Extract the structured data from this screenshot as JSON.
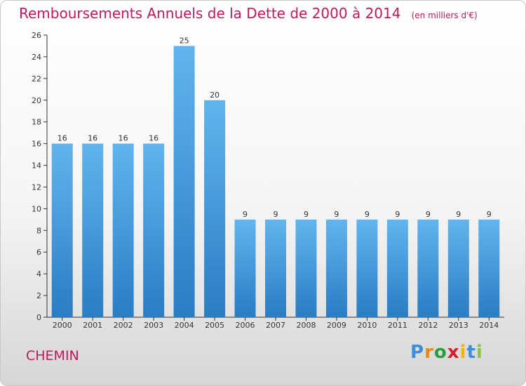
{
  "header": {
    "title": "Remboursements Annuels de la Dette de 2000 à 2014",
    "unit": "(en milliers d'€)"
  },
  "footer": {
    "city": "CHEMIN",
    "logo_letters": [
      "P",
      "r",
      "o",
      "x",
      "i",
      "t",
      "i"
    ],
    "logo_colors": [
      "#3a8fd6",
      "#e8891b",
      "#2a9d3c",
      "#d11f2f",
      "#f2b400",
      "#3a8fd6",
      "#8bc34a"
    ]
  },
  "chart_data": {
    "type": "bar",
    "categories": [
      "2000",
      "2001",
      "2002",
      "2003",
      "2004",
      "2005",
      "2006",
      "2007",
      "2008",
      "2009",
      "2010",
      "2011",
      "2012",
      "2013",
      "2014"
    ],
    "values": [
      16,
      16,
      16,
      16,
      25,
      20,
      9,
      9,
      9,
      9,
      9,
      9,
      9,
      9,
      9
    ],
    "ylim": [
      0,
      26
    ],
    "yticks": [
      0,
      2,
      4,
      6,
      8,
      10,
      12,
      14,
      16,
      18,
      20,
      22,
      24,
      26
    ],
    "grid": false,
    "bar_color": "#5aace6"
  }
}
